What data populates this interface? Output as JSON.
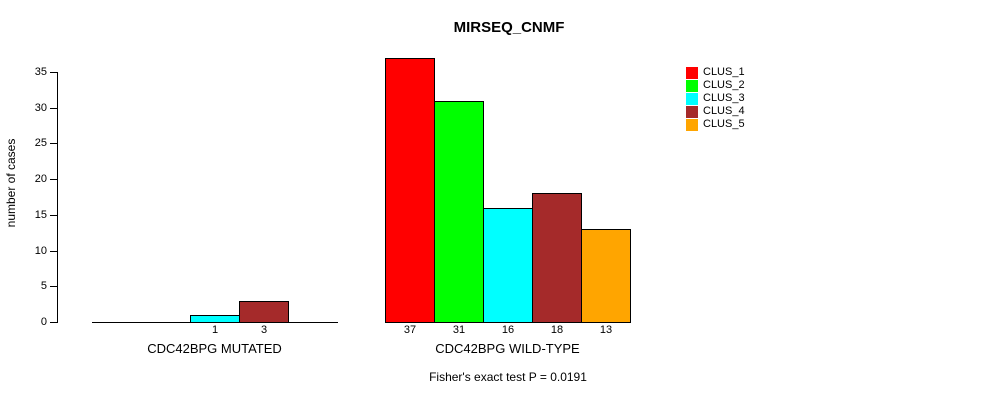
{
  "title": "MIRSEQ_CNMF",
  "footer": "Fisher's exact test P = 0.0191",
  "legend": {
    "entries": [
      {
        "label": "CLUS_1",
        "color": "#FF0000"
      },
      {
        "label": "CLUS_2",
        "color": "#00FF00"
      },
      {
        "label": "CLUS_3",
        "color": "#00FFFF"
      },
      {
        "label": "CLUS_4",
        "color": "#A52A2A"
      },
      {
        "label": "CLUS_5",
        "color": "#FFA500"
      }
    ]
  },
  "chart_data": {
    "type": "bar",
    "title": "MIRSEQ_CNMF",
    "xlabel": "",
    "ylabel": "number of cases",
    "ylim": [
      0,
      35
    ],
    "yticks": [
      0,
      5,
      10,
      15,
      20,
      25,
      30,
      35
    ],
    "categories": [
      "CDC42BPG MUTATED",
      "CDC42BPG WILD-TYPE"
    ],
    "series": [
      {
        "name": "CLUS_1",
        "color": "#FF0000",
        "values": [
          0,
          37
        ]
      },
      {
        "name": "CLUS_2",
        "color": "#00FF00",
        "values": [
          0,
          31
        ]
      },
      {
        "name": "CLUS_3",
        "color": "#00FFFF",
        "values": [
          1,
          16
        ]
      },
      {
        "name": "CLUS_4",
        "color": "#A52A2A",
        "values": [
          3,
          18
        ]
      },
      {
        "name": "CLUS_5",
        "color": "#FFA500",
        "values": [
          0,
          13
        ]
      }
    ],
    "bar_value_labels": "values shown under non-zero bars only",
    "annotation": "Fisher's exact test P = 0.0191",
    "legend_position": "top-right",
    "grid": false
  }
}
